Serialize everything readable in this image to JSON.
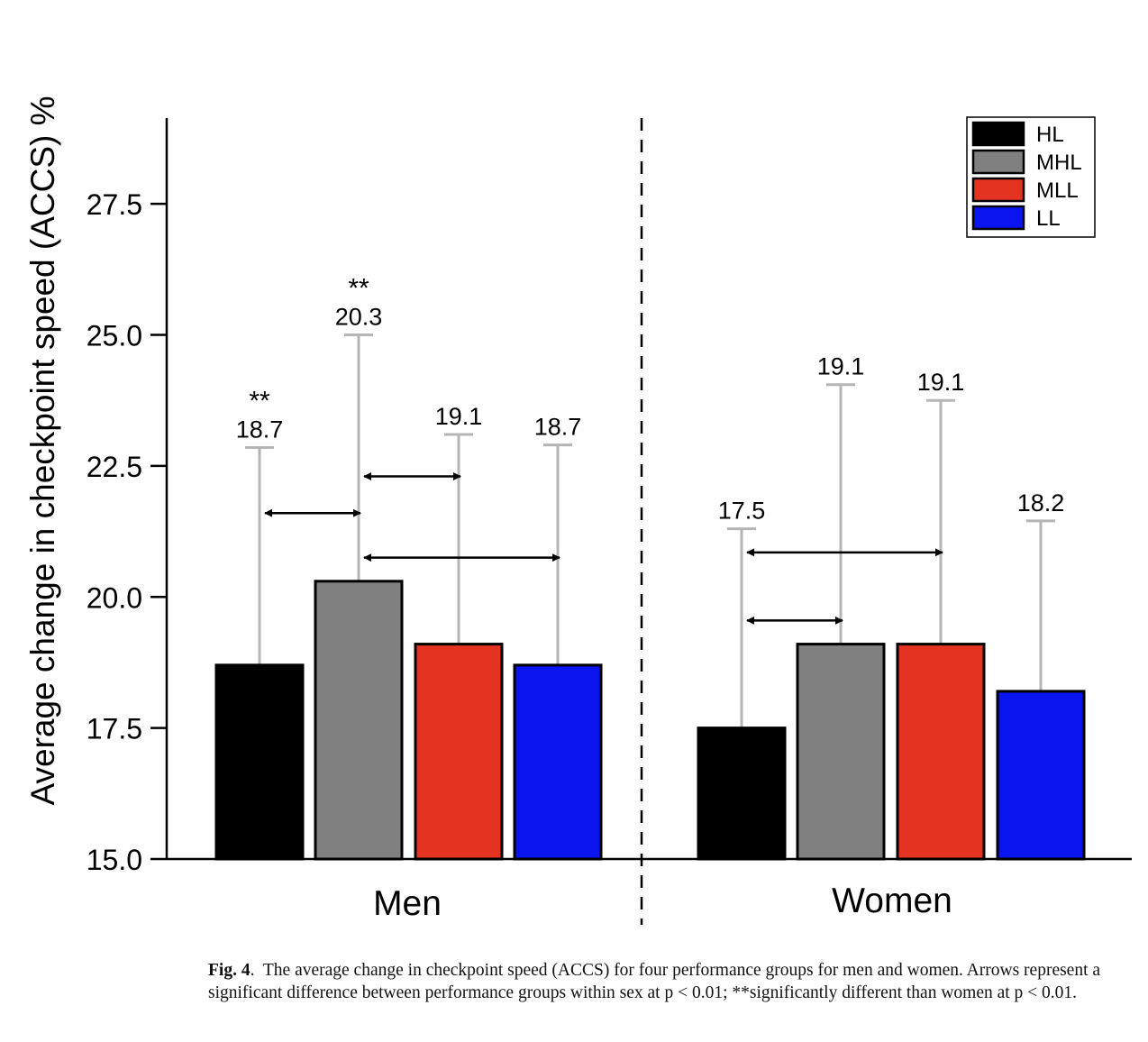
{
  "chart_data": {
    "type": "bar",
    "groups": [
      "Men",
      "Women"
    ],
    "series": [
      {
        "name": "HL",
        "color": "#000000",
        "values": [
          18.7,
          17.5
        ],
        "error_top": [
          22.85,
          21.3
        ]
      },
      {
        "name": "MHL",
        "color": "#808080",
        "values": [
          20.3,
          19.1
        ],
        "error_top": [
          25.0,
          24.05
        ]
      },
      {
        "name": "MLL",
        "color": "#e53322",
        "values": [
          19.1,
          19.1
        ],
        "error_top": [
          23.1,
          23.75
        ]
      },
      {
        "name": "LL",
        "color": "#0a14ee",
        "values": [
          18.7,
          18.2
        ],
        "error_top": [
          22.9,
          21.45
        ]
      }
    ],
    "value_labels": [
      [
        "18.7",
        "20.3",
        "19.1",
        "18.7"
      ],
      [
        "17.5",
        "19.1",
        "19.1",
        "18.2"
      ]
    ],
    "significance_marks": [
      {
        "group": 0,
        "series": 0,
        "mark": "**"
      },
      {
        "group": 0,
        "series": 1,
        "mark": "**"
      }
    ],
    "arrows": [
      {
        "group": 0,
        "from_series": 0,
        "to_series": 1,
        "y": 21.6
      },
      {
        "group": 0,
        "from_series": 1,
        "to_series": 2,
        "y": 22.3
      },
      {
        "group": 0,
        "from_series": 1,
        "to_series": 3,
        "y": 20.75
      },
      {
        "group": 1,
        "from_series": 0,
        "to_series": 2,
        "y": 20.85
      },
      {
        "group": 1,
        "from_series": 0,
        "to_series": 1,
        "y": 19.55
      }
    ],
    "ylabel": "Average change in checkpoint speed (ACCS) %",
    "xlabel": "",
    "ylim": [
      15.0,
      29.2
    ],
    "yticks": [
      "15.0",
      "17.5",
      "20.0",
      "22.5",
      "25.0",
      "27.5"
    ],
    "legend_position": "top-right",
    "grid": false,
    "divider": "dashed vertical line between groups"
  },
  "caption": {
    "label": "Fig. 4",
    "text": "The average change in checkpoint speed (ACCS) for four performance groups for men and women. Arrows represent a significant difference between performance groups within sex at p < 0.01; **significantly different than women at p < 0.01."
  }
}
